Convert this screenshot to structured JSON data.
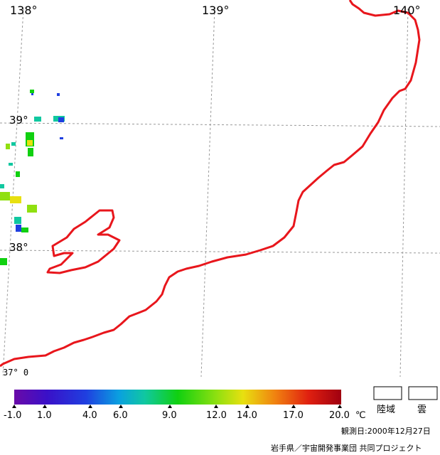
{
  "map": {
    "lon_labels": [
      "138°",
      "139°",
      "140°"
    ],
    "lat_labels": [
      "39°",
      "38°",
      "37° 0"
    ],
    "coast_color": "#e8161c",
    "grid_color": "#999999"
  },
  "legend": {
    "ticks": [
      "-1.0",
      "1.0",
      "4.0",
      "6.0",
      "9.0",
      "12.0",
      "14.0",
      "17.0",
      "20.0"
    ],
    "unit": "℃",
    "land_label": "陸域",
    "cloud_label": "雲"
  },
  "footer": {
    "date": "観測日:2000年12月27日",
    "credit": "岩手県／宇宙開発事業団  共同プロジェクト"
  }
}
